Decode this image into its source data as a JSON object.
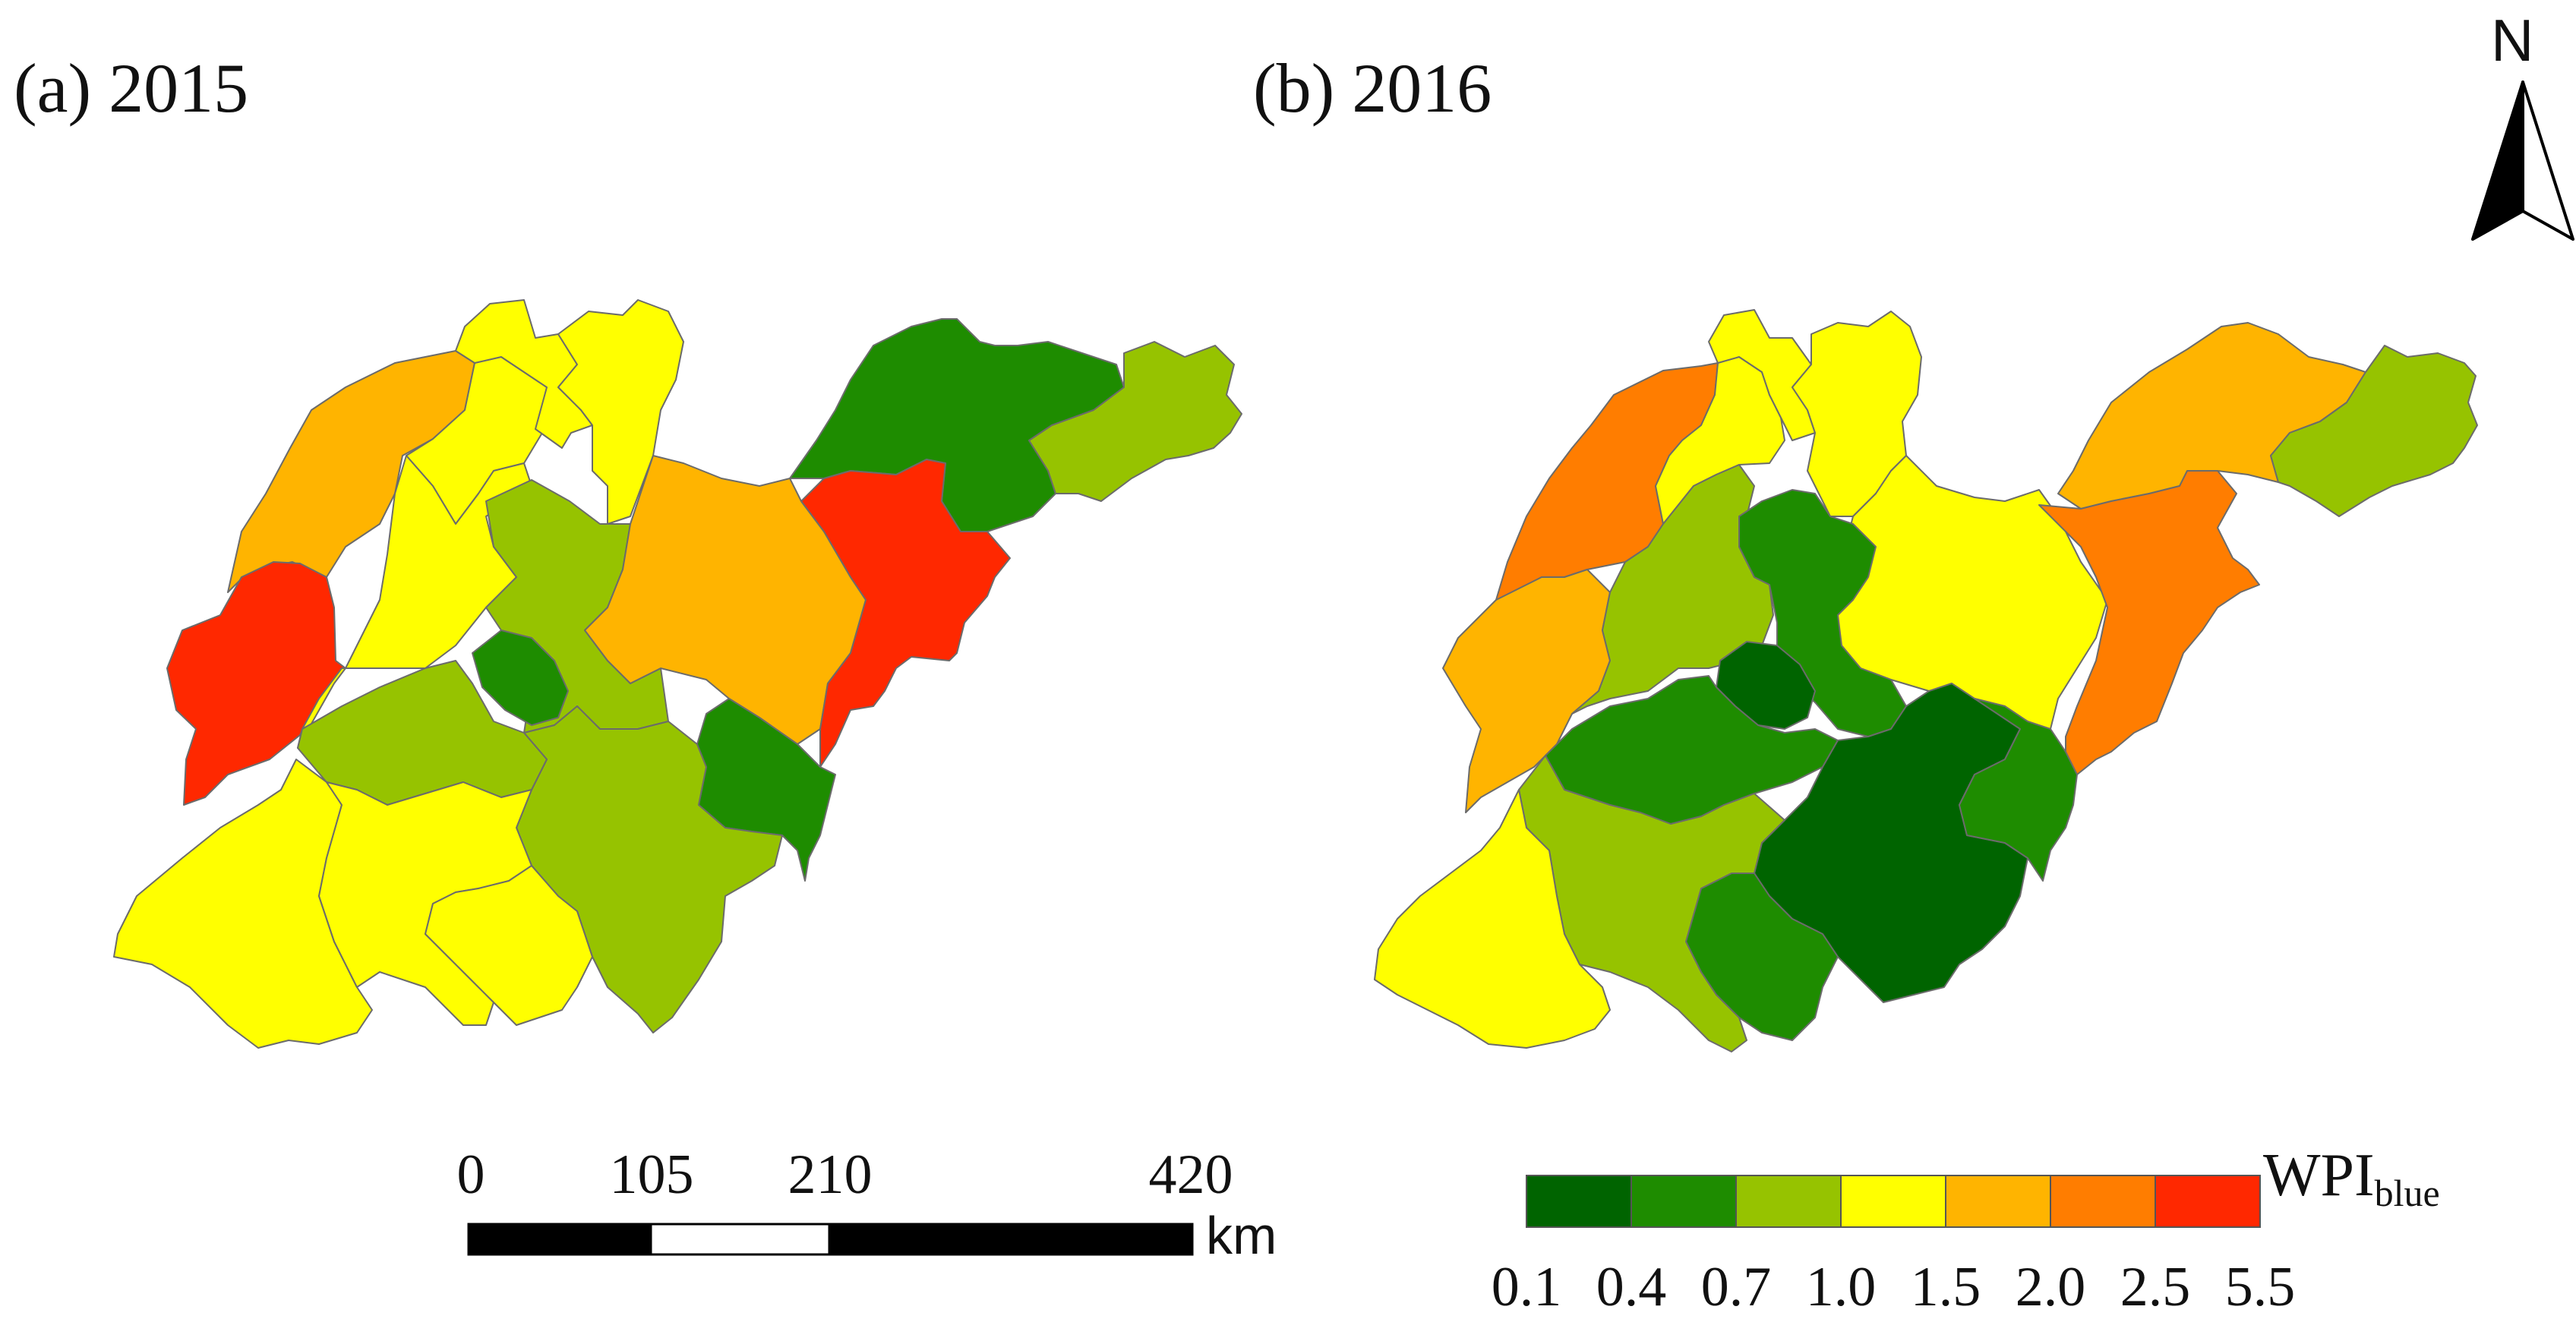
{
  "panels": [
    {
      "title": "(a) 2015"
    },
    {
      "title": "(b) 2016"
    }
  ],
  "north_arrow": {
    "label": "N"
  },
  "scale_bar": {
    "ticks": [
      "0",
      "105",
      "210",
      "420"
    ],
    "unit": "km"
  },
  "legend": {
    "title": "WPI",
    "title_sub": "blue",
    "breaks": [
      "0.1",
      "0.4",
      "0.7",
      "1.0",
      "1.5",
      "2.0",
      "2.5",
      "5.5"
    ],
    "colors": [
      "#006400",
      "#1e8c00",
      "#96c300",
      "#ffff00",
      "#ffb400",
      "#ff7d00",
      "#ff2800"
    ]
  }
}
